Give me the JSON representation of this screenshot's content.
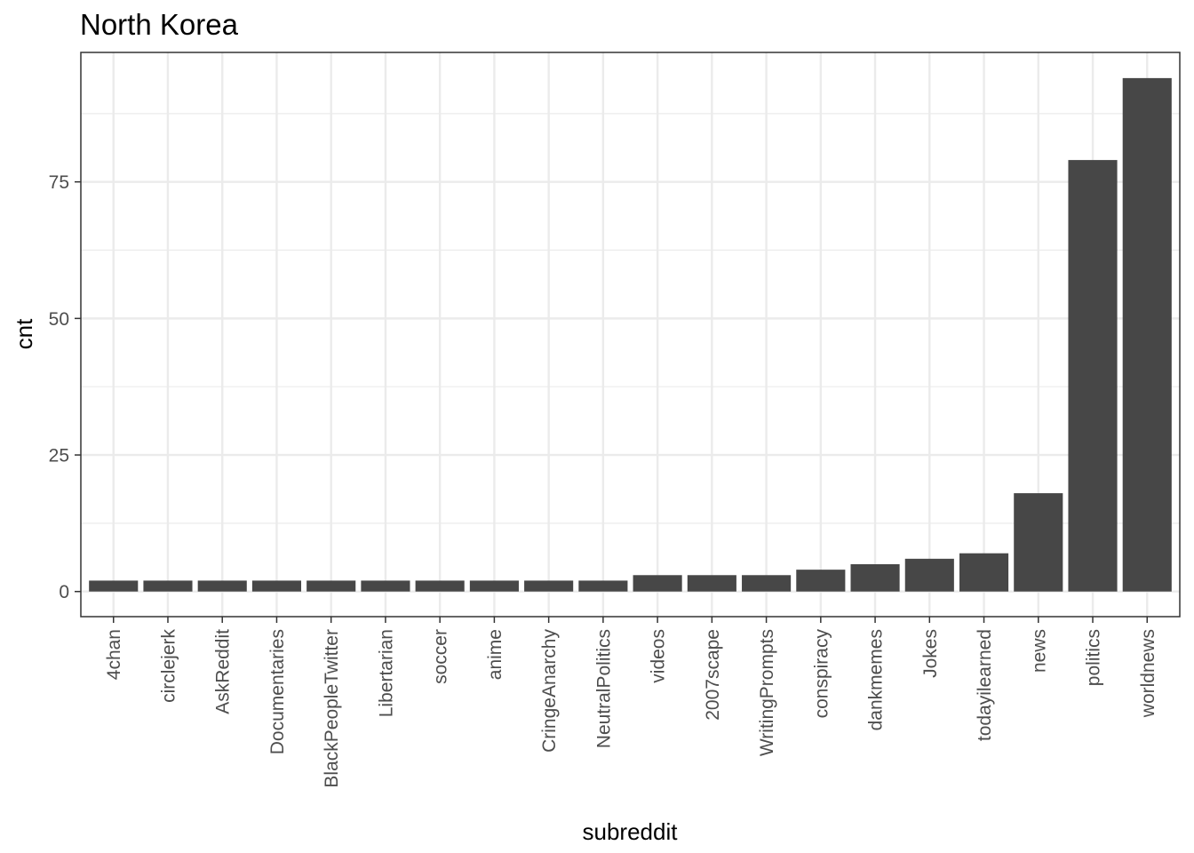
{
  "chart_data": {
    "type": "bar",
    "title": "North Korea",
    "xlabel": "subreddit",
    "ylabel": "cnt",
    "categories": [
      "4chan",
      "circlejerk",
      "AskReddit",
      "Documentaries",
      "BlackPeopleTwitter",
      "Libertarian",
      "soccer",
      "anime",
      "CringeAnarchy",
      "NeutralPolitics",
      "videos",
      "2007scape",
      "WritingPrompts",
      "conspiracy",
      "dankmemes",
      "Jokes",
      "todayilearned",
      "news",
      "politics",
      "worldnews"
    ],
    "values": [
      2,
      2,
      2,
      2,
      2,
      2,
      2,
      2,
      2,
      2,
      3,
      3,
      3,
      4,
      5,
      6,
      7,
      18,
      79,
      94
    ],
    "yticks": [
      0,
      25,
      50,
      75
    ],
    "ylim": [
      -4.6,
      98.7
    ],
    "grid": true,
    "bar_color": "#474747",
    "grid_color": "#ebebeb",
    "panel_border_color": "#333333"
  }
}
